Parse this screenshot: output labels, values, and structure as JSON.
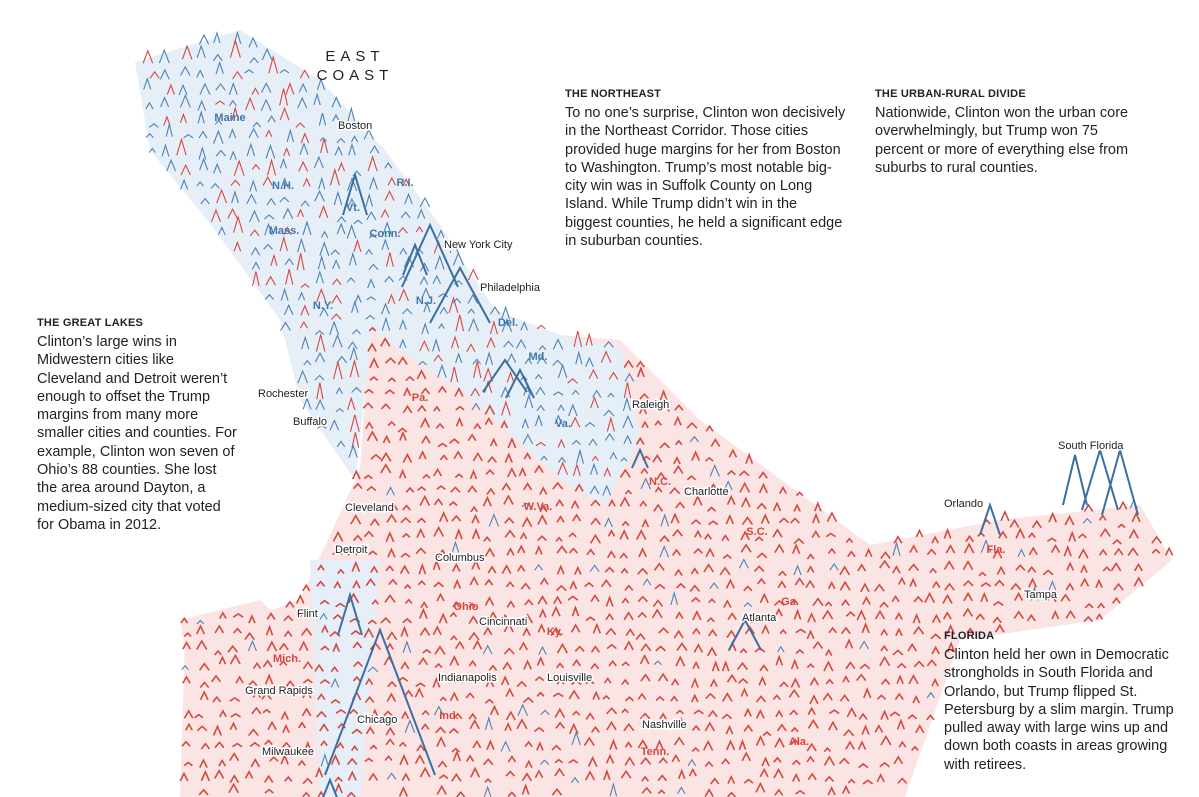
{
  "header": {
    "lines": [
      "EAST",
      "COAST"
    ]
  },
  "annotations": [
    {
      "title": "THE NORTHEAST",
      "body": "To no one’s surprise, Clinton won decisively in the Northeast Corridor. Those cities provided huge margins for her from Boston to Washington. Trump’s most notable big-city win was in Suffolk County on Long Island. While Trump didn’t win in the biggest counties, he held a significant edge in suburban counties."
    },
    {
      "title": "THE URBAN-RURAL DIVIDE",
      "body": "Nationwide, Clinton won the urban core overwhelmingly, but Trump won 75 percent or more of everything else from suburbs to rural counties."
    },
    {
      "title": "THE GREAT LAKES",
      "body": "Clinton’s large wins in Midwestern cities like Cleveland and Detroit weren’t enough to offset the Trump margins from many more smaller cities and counties. For example, Clinton won seven of Ohio’s 88 counties. She lost the area around Dayton, a medium-sized city that voted for Obama in 2012."
    },
    {
      "title": "FLORIDA",
      "body": "Clinton held her own in Democratic strongholds in South Florida and Orlando, but Trump flipped St. Petersburg by a slim margin. Trump pulled away with large wins up and down both coasts in areas growing with retirees."
    }
  ],
  "states": [
    "Maine",
    "N.H.",
    "Vt.",
    "Mass.",
    "Conn.",
    "R.I.",
    "N.Y.",
    "N.J.",
    "Del.",
    "Md.",
    "Pa.",
    "Va.",
    "N.C.",
    "W.Va.",
    "S.C.",
    "Ohio",
    "Ky.",
    "Ga.",
    "Fla.",
    "Mich.",
    "Ind.",
    "Tenn.",
    "Ala."
  ],
  "cities": [
    "Boston",
    "New York City",
    "Philadelphia",
    "Rochester",
    "Buffalo",
    "Raleigh",
    "Charlotte",
    "Cleveland",
    "Detroit",
    "Columbus",
    "Orlando",
    "South Florida",
    "Tampa",
    "Flint",
    "Cincinnati",
    "Atlanta",
    "Grand Rapids",
    "Indianapolis",
    "Louisville",
    "Chicago",
    "Milwaukee",
    "Nashville"
  ]
}
